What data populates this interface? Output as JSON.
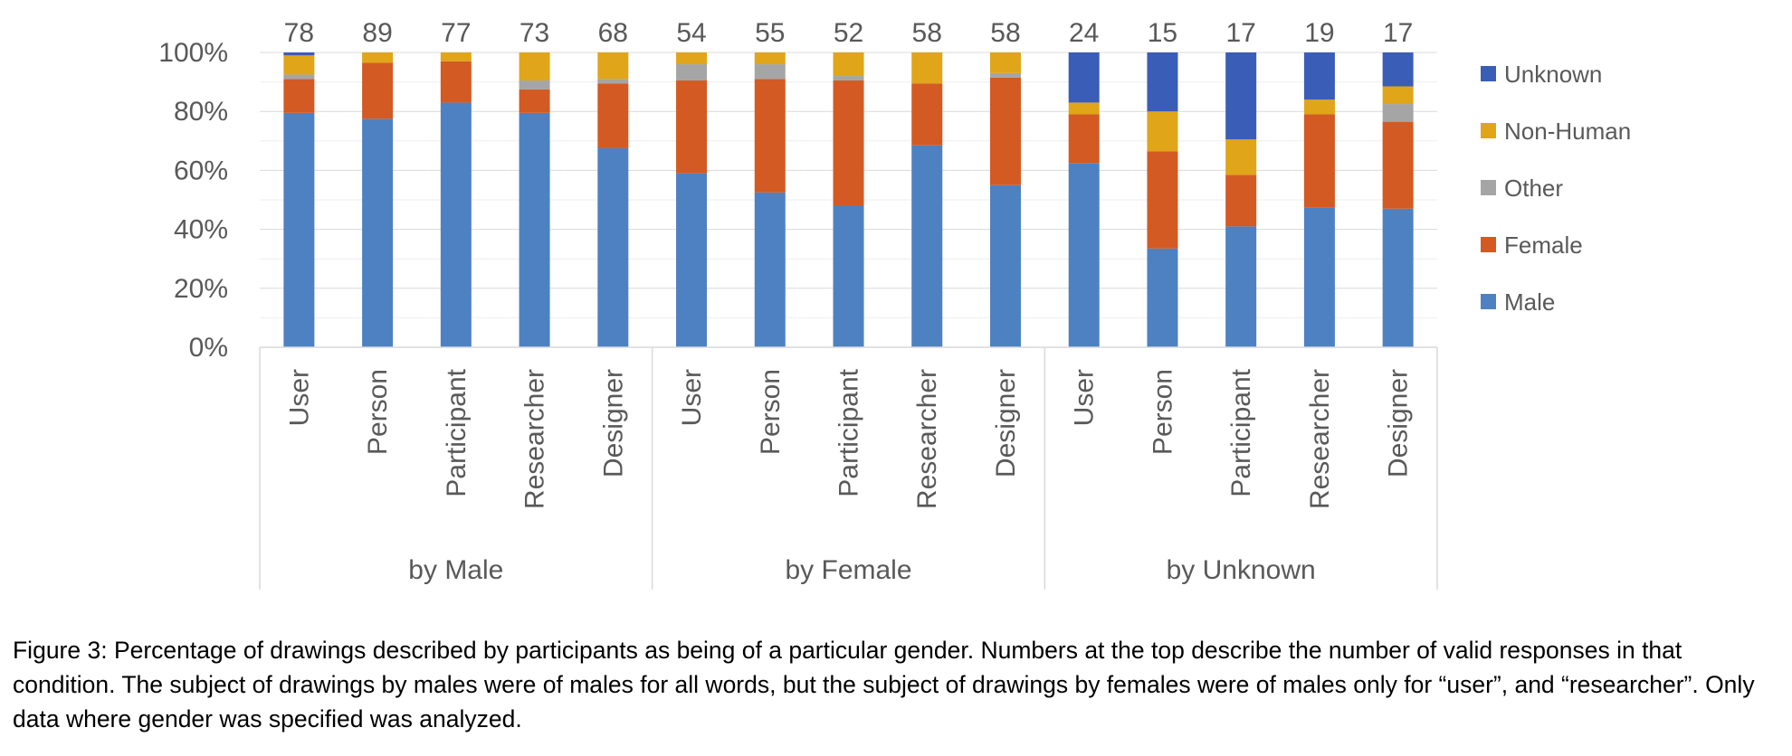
{
  "chart_data": {
    "type": "bar",
    "stacked": true,
    "normalized": true,
    "y_axis": {
      "ylim": [
        0,
        100
      ],
      "ticks": [
        "0%",
        "20%",
        "40%",
        "60%",
        "80%",
        "100%"
      ]
    },
    "grid": true,
    "legend_position": "right",
    "groups": [
      {
        "label": "by Male",
        "categories": [
          "User",
          "Person",
          "Participant",
          "Researcher",
          "Designer"
        ],
        "counts": [
          "78",
          "89",
          "77",
          "73",
          "68"
        ]
      },
      {
        "label": "by Female",
        "categories": [
          "User",
          "Person",
          "Participant",
          "Researcher",
          "Designer"
        ],
        "counts": [
          "54",
          "55",
          "52",
          "58",
          "58"
        ]
      },
      {
        "label": "by Unknown",
        "categories": [
          "User",
          "Person",
          "Participant",
          "Researcher",
          "Designer"
        ],
        "counts": [
          "24",
          "15",
          "17",
          "19",
          "17"
        ]
      }
    ],
    "series": [
      {
        "name": "Male",
        "color": "#4e81c2",
        "values": [
          79.5,
          77.5,
          83,
          79.5,
          67.5,
          59,
          52.5,
          48,
          68.5,
          55,
          62.5,
          33.5,
          41,
          47.5,
          47
        ]
      },
      {
        "name": "Female",
        "color": "#d35a22",
        "values": [
          11.5,
          19,
          14,
          8,
          22,
          31.5,
          38.5,
          42.5,
          21,
          36.5,
          16.5,
          33,
          17.5,
          31.5,
          29.5
        ]
      },
      {
        "name": "Other",
        "color": "#a5a5a5",
        "values": [
          1.5,
          0,
          0,
          3,
          1.5,
          5.5,
          5,
          1.5,
          0,
          1.5,
          0,
          0,
          0,
          0,
          6
        ]
      },
      {
        "name": "Non-Human",
        "color": "#e0a518",
        "values": [
          6.5,
          3.5,
          3,
          9.5,
          9,
          4,
          4,
          8,
          10.5,
          7,
          4,
          13.5,
          12,
          5,
          6
        ]
      },
      {
        "name": "Unknown",
        "color": "#3a5db8",
        "values": [
          1,
          0,
          0,
          0,
          0,
          0,
          0,
          0,
          0,
          0,
          17,
          20,
          29.5,
          16,
          11.5
        ]
      }
    ],
    "legend": [
      "Unknown",
      "Non-Human",
      "Other",
      "Female",
      "Male"
    ]
  },
  "caption": "Figure 3:  Percentage of drawings described by participants as being of a particular gender. Numbers at the top describe the number of valid responses in that condition. The subject of drawings by males were of males for all words, but the subject of drawings by females were of males only for “user”, and “researcher”. Only data where gender was specified was analyzed."
}
